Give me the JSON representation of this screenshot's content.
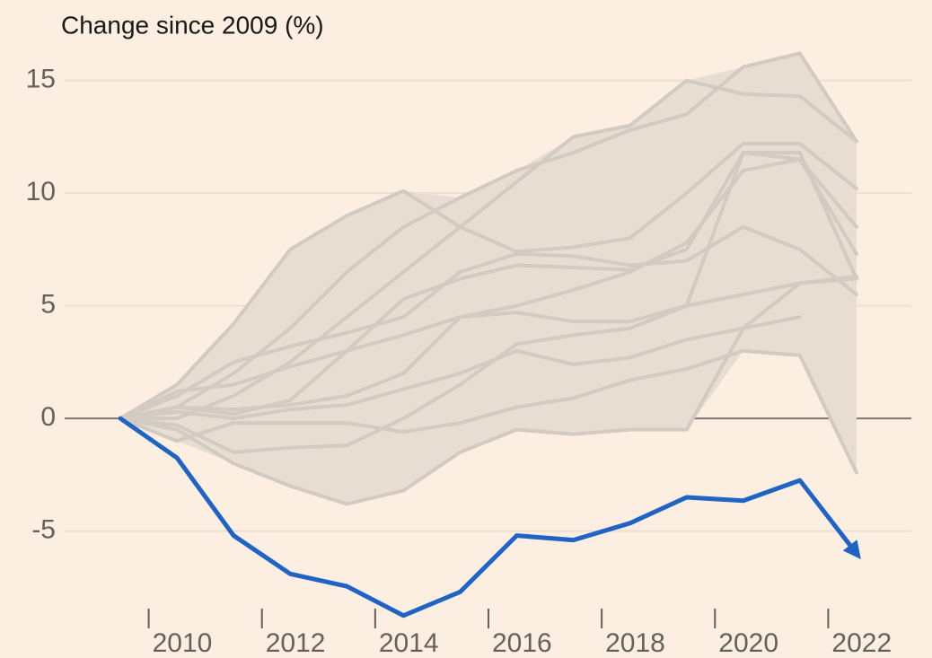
{
  "chart_data": {
    "type": "line",
    "title": "Change since 2009 (%)",
    "x": [
      2009,
      2010,
      2011,
      2012,
      2013,
      2014,
      2015,
      2016,
      2017,
      2018,
      2019,
      2020,
      2021,
      2022
    ],
    "xlim": [
      2008,
      2023
    ],
    "xticks": [
      2010,
      2012,
      2014,
      2016,
      2018,
      2020,
      2022
    ],
    "ylim": [
      -9,
      16.5
    ],
    "yticks": [
      -5,
      0,
      5,
      10,
      15
    ],
    "grid": true,
    "band_color": "#e7ddd3",
    "series": [
      {
        "color": "#d3cac1",
        "values": [
          0,
          1.5,
          4.2,
          7.5,
          9,
          10.1,
          8.5,
          7.4,
          7.6,
          8,
          10,
          12.2,
          12.2,
          10.2
        ]
      },
      {
        "color": "#d3cac1",
        "values": [
          0,
          0.5,
          2,
          4,
          6.5,
          8.5,
          9.8,
          11,
          11.8,
          12.8,
          13.5,
          15.6,
          16.2,
          12.3
        ]
      },
      {
        "color": "#d3cac1",
        "values": [
          0,
          0,
          1,
          2.5,
          4.5,
          6.5,
          8.5,
          10.5,
          12.5,
          13,
          15,
          14.4,
          14.3,
          12.3
        ]
      },
      {
        "color": "#d3cac1",
        "values": [
          0,
          1,
          2.5,
          3.2,
          3.8,
          4.5,
          6.5,
          7.3,
          7.2,
          6.8,
          7,
          8.5,
          7.5,
          5.5
        ]
      },
      {
        "color": "#d3cac1",
        "values": [
          0,
          0.5,
          0.2,
          0.8,
          3,
          5.3,
          6.2,
          6.8,
          6.7,
          6.6,
          7.5,
          11.8,
          11.5,
          7.3
        ]
      },
      {
        "color": "#d3cac1",
        "values": [
          0,
          1.2,
          1.5,
          2.3,
          3,
          3.7,
          4.5,
          5,
          5.7,
          6.5,
          7.8,
          11,
          11.5,
          8.5
        ]
      },
      {
        "color": "#d3cac1",
        "values": [
          0,
          0.3,
          0,
          0.4,
          0.6,
          1.3,
          2,
          3,
          2.4,
          2.7,
          3.5,
          4,
          4.5,
          null
        ]
      },
      {
        "color": "#d3cac1",
        "values": [
          0,
          -0.3,
          -1.5,
          -1.3,
          -1.2,
          0,
          1.5,
          3.3,
          3.7,
          4,
          5,
          5.5,
          6,
          6.3
        ]
      },
      {
        "color": "#d3cac1",
        "values": [
          0,
          -1,
          -0.2,
          -0.2,
          -0.2,
          -0.6,
          -0.2,
          0.5,
          0.9,
          1.7,
          2.2,
          3,
          2.8,
          -2.4
        ]
      },
      {
        "color": "#d3cac1",
        "values": [
          0,
          -0.5,
          -2,
          -3,
          -3.8,
          -3.2,
          -1.5,
          -0.5,
          -0.7,
          -0.5,
          -0.5,
          4,
          6,
          6.2
        ]
      },
      {
        "color": "#d3cac1",
        "values": [
          0,
          0.5,
          0.4,
          0.6,
          1,
          2,
          4.5,
          4.7,
          4.3,
          4.3,
          5,
          11.8,
          11.8,
          6.2
        ]
      },
      {
        "color": "#1f63c4",
        "values": [
          0,
          -1.75,
          -5.2,
          -6.9,
          -7.45,
          -8.75,
          -7.7,
          -5.2,
          -5.4,
          -4.65,
          -3.5,
          -3.65,
          -2.75,
          -6.0
        ]
      }
    ]
  }
}
